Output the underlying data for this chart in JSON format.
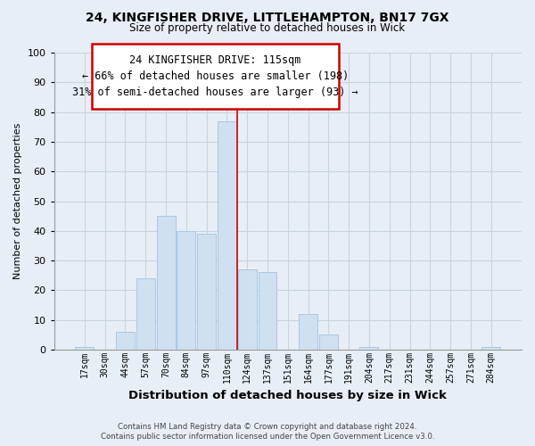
{
  "title1": "24, KINGFISHER DRIVE, LITTLEHAMPTON, BN17 7GX",
  "title2": "Size of property relative to detached houses in Wick",
  "xlabel": "Distribution of detached houses by size in Wick",
  "ylabel": "Number of detached properties",
  "bar_labels": [
    "17sqm",
    "30sqm",
    "44sqm",
    "57sqm",
    "70sqm",
    "84sqm",
    "97sqm",
    "110sqm",
    "124sqm",
    "137sqm",
    "151sqm",
    "164sqm",
    "177sqm",
    "191sqm",
    "204sqm",
    "217sqm",
    "231sqm",
    "244sqm",
    "257sqm",
    "271sqm",
    "284sqm"
  ],
  "bar_values": [
    1,
    0,
    6,
    24,
    45,
    40,
    39,
    77,
    27,
    26,
    0,
    12,
    5,
    0,
    1,
    0,
    0,
    0,
    0,
    0,
    1
  ],
  "bar_color": "#cfe0f0",
  "bar_edge_color": "#a8c8e8",
  "ylim": [
    0,
    100
  ],
  "yticks": [
    0,
    10,
    20,
    30,
    40,
    50,
    60,
    70,
    80,
    90,
    100
  ],
  "annotation_line1": "24 KINGFISHER DRIVE: 115sqm",
  "annotation_line2": "← 66% of detached houses are smaller (198)",
  "annotation_line3": "31% of semi-detached houses are larger (93) →",
  "vline_x": 7.5,
  "vline_color": "#cc0000",
  "footer_line1": "Contains HM Land Registry data © Crown copyright and database right 2024.",
  "footer_line2": "Contains public sector information licensed under the Open Government Licence v3.0.",
  "bg_color": "#e8eef5",
  "plot_bg_color": "#e8eef5",
  "grid_color": "#c8d4e0",
  "box_edge_color": "#cc0000",
  "box_face_color": "#ffffff"
}
